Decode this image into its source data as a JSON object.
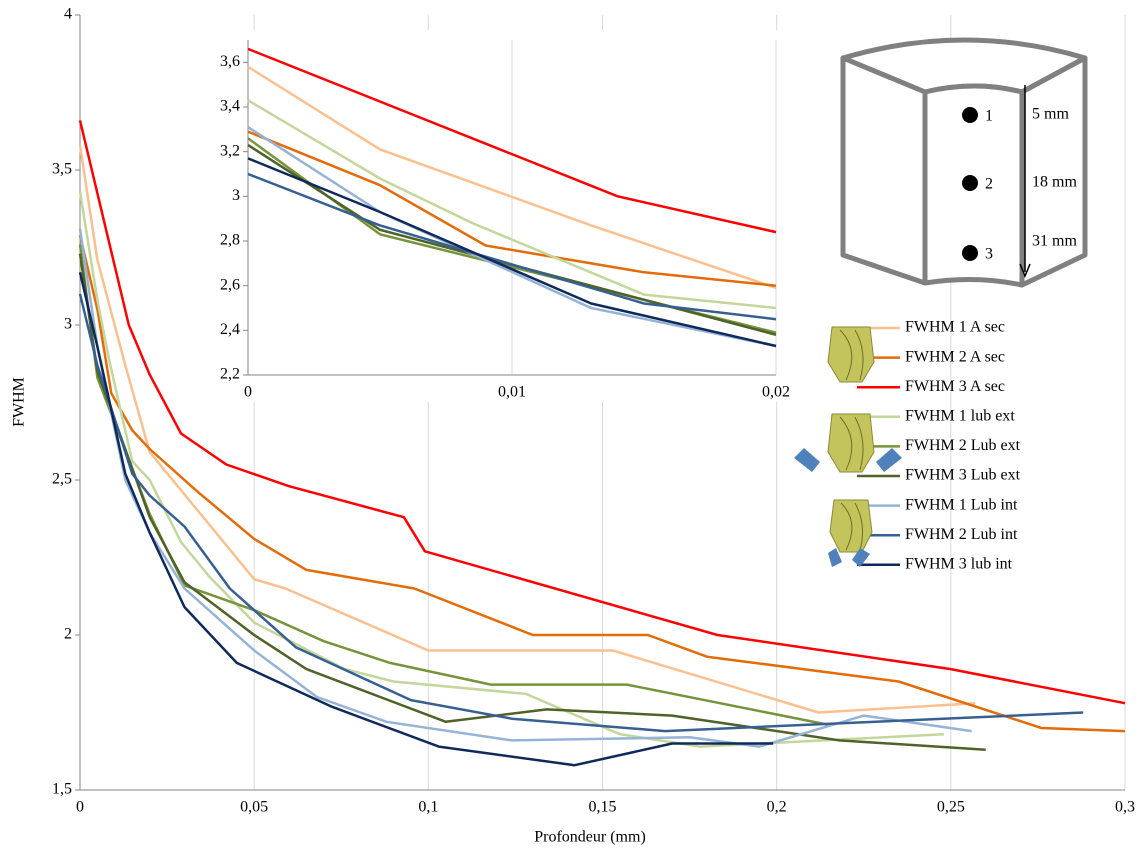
{
  "chart_data": [
    {
      "type": "line",
      "x_label": "Profondeur (mm)",
      "y_label": "FWHM",
      "xlim": [
        0,
        0.3
      ],
      "ylim": [
        1.5,
        4
      ],
      "xticks": [
        0,
        {
          "value": 0.05,
          "label": "0,05"
        },
        {
          "value": 0.1,
          "label": "0,1"
        },
        {
          "value": 0.15,
          "label": "0,15"
        },
        {
          "value": 0.2,
          "label": "0,2"
        },
        {
          "value": 0.25,
          "label": "0,25"
        },
        {
          "value": 0.3,
          "label": "0,3"
        }
      ],
      "yticks": [
        {
          "value": 1.5,
          "label": "1,5"
        },
        2,
        {
          "value": 2.5,
          "label": "2,5"
        },
        3,
        {
          "value": 3.5,
          "label": "3,5"
        },
        4
      ],
      "grid": "vertical",
      "legend": "right",
      "series": [
        {
          "name": "FWHM 1 A sec",
          "color": "#fac090",
          "x": [
            0,
            0.005,
            0.013,
            0.02,
            0.05,
            0.059,
            0.1,
            0.153,
            0.212,
            0.257
          ],
          "values": [
            3.58,
            3.21,
            2.87,
            2.59,
            2.18,
            2.15,
            1.95,
            1.95,
            1.75,
            1.78
          ]
        },
        {
          "name": "FWHM 2 A sec",
          "color": "#e36c09",
          "x": [
            0,
            0.005,
            0.009,
            0.015,
            0.02,
            0.034,
            0.05,
            0.065,
            0.096,
            0.13,
            0.163,
            0.18,
            0.235,
            0.276,
            0.3
          ],
          "values": [
            3.29,
            3.05,
            2.78,
            2.66,
            2.6,
            2.46,
            2.31,
            2.21,
            2.15,
            2.0,
            2.0,
            1.93,
            1.85,
            1.7,
            1.69
          ]
        },
        {
          "name": "FWHM 3 A sec",
          "color": "#ff0000",
          "x": [
            0,
            0.014,
            0.02,
            0.029,
            0.042,
            0.06,
            0.093,
            0.099,
            0.183,
            0.25,
            0.3
          ],
          "values": [
            3.66,
            3.0,
            2.84,
            2.65,
            2.55,
            2.48,
            2.38,
            2.27,
            2.0,
            1.89,
            1.78
          ]
        },
        {
          "name": "FWHM 1 lub ext",
          "color": "#c3d69b",
          "x": [
            0,
            0.005,
            0.0085,
            0.015,
            0.02,
            0.029,
            0.037,
            0.05,
            0.076,
            0.09,
            0.128,
            0.155,
            0.178,
            0.248
          ],
          "values": [
            3.43,
            3.08,
            2.88,
            2.56,
            2.5,
            2.3,
            2.19,
            2.04,
            1.89,
            1.85,
            1.81,
            1.68,
            1.64,
            1.68
          ]
        },
        {
          "name": "FWHM 2 Lub ext",
          "color": "#77933c",
          "x": [
            0,
            0.005,
            0.02,
            0.03,
            0.05,
            0.07,
            0.089,
            0.118,
            0.157,
            0.215
          ],
          "values": [
            3.26,
            2.83,
            2.39,
            2.16,
            2.08,
            1.98,
            1.91,
            1.84,
            1.84,
            1.71
          ]
        },
        {
          "name": "FWHM 3 Lub ext",
          "color": "#4f6228",
          "x": [
            0,
            0.005,
            0.02,
            0.03,
            0.05,
            0.065,
            0.105,
            0.134,
            0.17,
            0.218,
            0.26
          ],
          "values": [
            3.23,
            2.85,
            2.38,
            2.17,
            2.0,
            1.89,
            1.72,
            1.76,
            1.74,
            1.66,
            1.63
          ]
        },
        {
          "name": "FWHM 1 Lub int",
          "color": "#95b3d7",
          "x": [
            0,
            0.005,
            0.013,
            0.02,
            0.03,
            0.05,
            0.068,
            0.088,
            0.124,
            0.175,
            0.195,
            0.225,
            0.256
          ],
          "values": [
            3.31,
            2.93,
            2.5,
            2.33,
            2.15,
            1.95,
            1.8,
            1.72,
            1.66,
            1.67,
            1.64,
            1.74,
            1.69
          ]
        },
        {
          "name": "FWHM 2 Lub int",
          "color": "#376092",
          "x": [
            0,
            0.005,
            0.015,
            0.02,
            0.03,
            0.043,
            0.062,
            0.095,
            0.124,
            0.168,
            0.288
          ],
          "values": [
            3.1,
            2.87,
            2.52,
            2.45,
            2.35,
            2.15,
            1.96,
            1.79,
            1.73,
            1.69,
            1.75
          ]
        },
        {
          "name": "FWHM 3 lub int",
          "color": "#0f2a5a",
          "x": [
            0,
            0.005,
            0.013,
            0.02,
            0.03,
            0.045,
            0.072,
            0.103,
            0.142,
            0.17,
            0.199
          ],
          "values": [
            3.17,
            2.93,
            2.52,
            2.33,
            2.09,
            1.91,
            1.77,
            1.64,
            1.58,
            1.65,
            1.65
          ]
        }
      ]
    },
    {
      "type": "line",
      "xlim": [
        0,
        0.02
      ],
      "ylim": [
        2.2,
        3.7
      ],
      "xticks": [
        0,
        {
          "value": 0.01,
          "label": "0,01"
        },
        {
          "value": 0.02,
          "label": "0,02"
        }
      ],
      "yticks": [
        {
          "value": 2.2,
          "label": "2,2"
        },
        {
          "value": 2.4,
          "label": "2,4"
        },
        {
          "value": 2.6,
          "label": "2,6"
        },
        {
          "value": 2.8,
          "label": "2,8"
        },
        3,
        {
          "value": 3.2,
          "label": "3,2"
        },
        {
          "value": 3.4,
          "label": "3,4"
        },
        {
          "value": 3.6,
          "label": "3,6"
        }
      ],
      "grid": "vertical",
      "series": [
        {
          "color": "#fac090",
          "x": [
            0,
            0.005,
            0.013,
            0.02
          ],
          "values": [
            3.58,
            3.21,
            2.87,
            2.59
          ]
        },
        {
          "color": "#e36c09",
          "x": [
            0,
            0.005,
            0.009,
            0.015,
            0.02
          ],
          "values": [
            3.29,
            3.05,
            2.78,
            2.66,
            2.6
          ]
        },
        {
          "color": "#ff0000",
          "x": [
            0,
            0.014,
            0.02
          ],
          "values": [
            3.66,
            3.0,
            2.84
          ]
        },
        {
          "color": "#c3d69b",
          "x": [
            0,
            0.005,
            0.0085,
            0.015,
            0.02
          ],
          "values": [
            3.43,
            3.08,
            2.88,
            2.56,
            2.5
          ]
        },
        {
          "color": "#77933c",
          "x": [
            0,
            0.005,
            0.02
          ],
          "values": [
            3.26,
            2.83,
            2.39
          ]
        },
        {
          "color": "#4f6228",
          "x": [
            0,
            0.005,
            0.02
          ],
          "values": [
            3.23,
            2.85,
            2.38
          ]
        },
        {
          "color": "#95b3d7",
          "x": [
            0,
            0.005,
            0.013,
            0.02
          ],
          "values": [
            3.31,
            2.93,
            2.5,
            2.33
          ]
        },
        {
          "color": "#376092",
          "x": [
            0,
            0.005,
            0.015,
            0.02
          ],
          "values": [
            3.1,
            2.87,
            2.52,
            2.45
          ]
        },
        {
          "color": "#0f2a5a",
          "x": [
            0,
            0.005,
            0.013,
            0.02
          ],
          "values": [
            3.17,
            2.93,
            2.52,
            2.33
          ]
        }
      ]
    }
  ],
  "diagram": {
    "points": [
      "1",
      "2",
      "3"
    ],
    "depths": [
      "5 mm",
      "18 mm",
      "31 mm"
    ]
  }
}
